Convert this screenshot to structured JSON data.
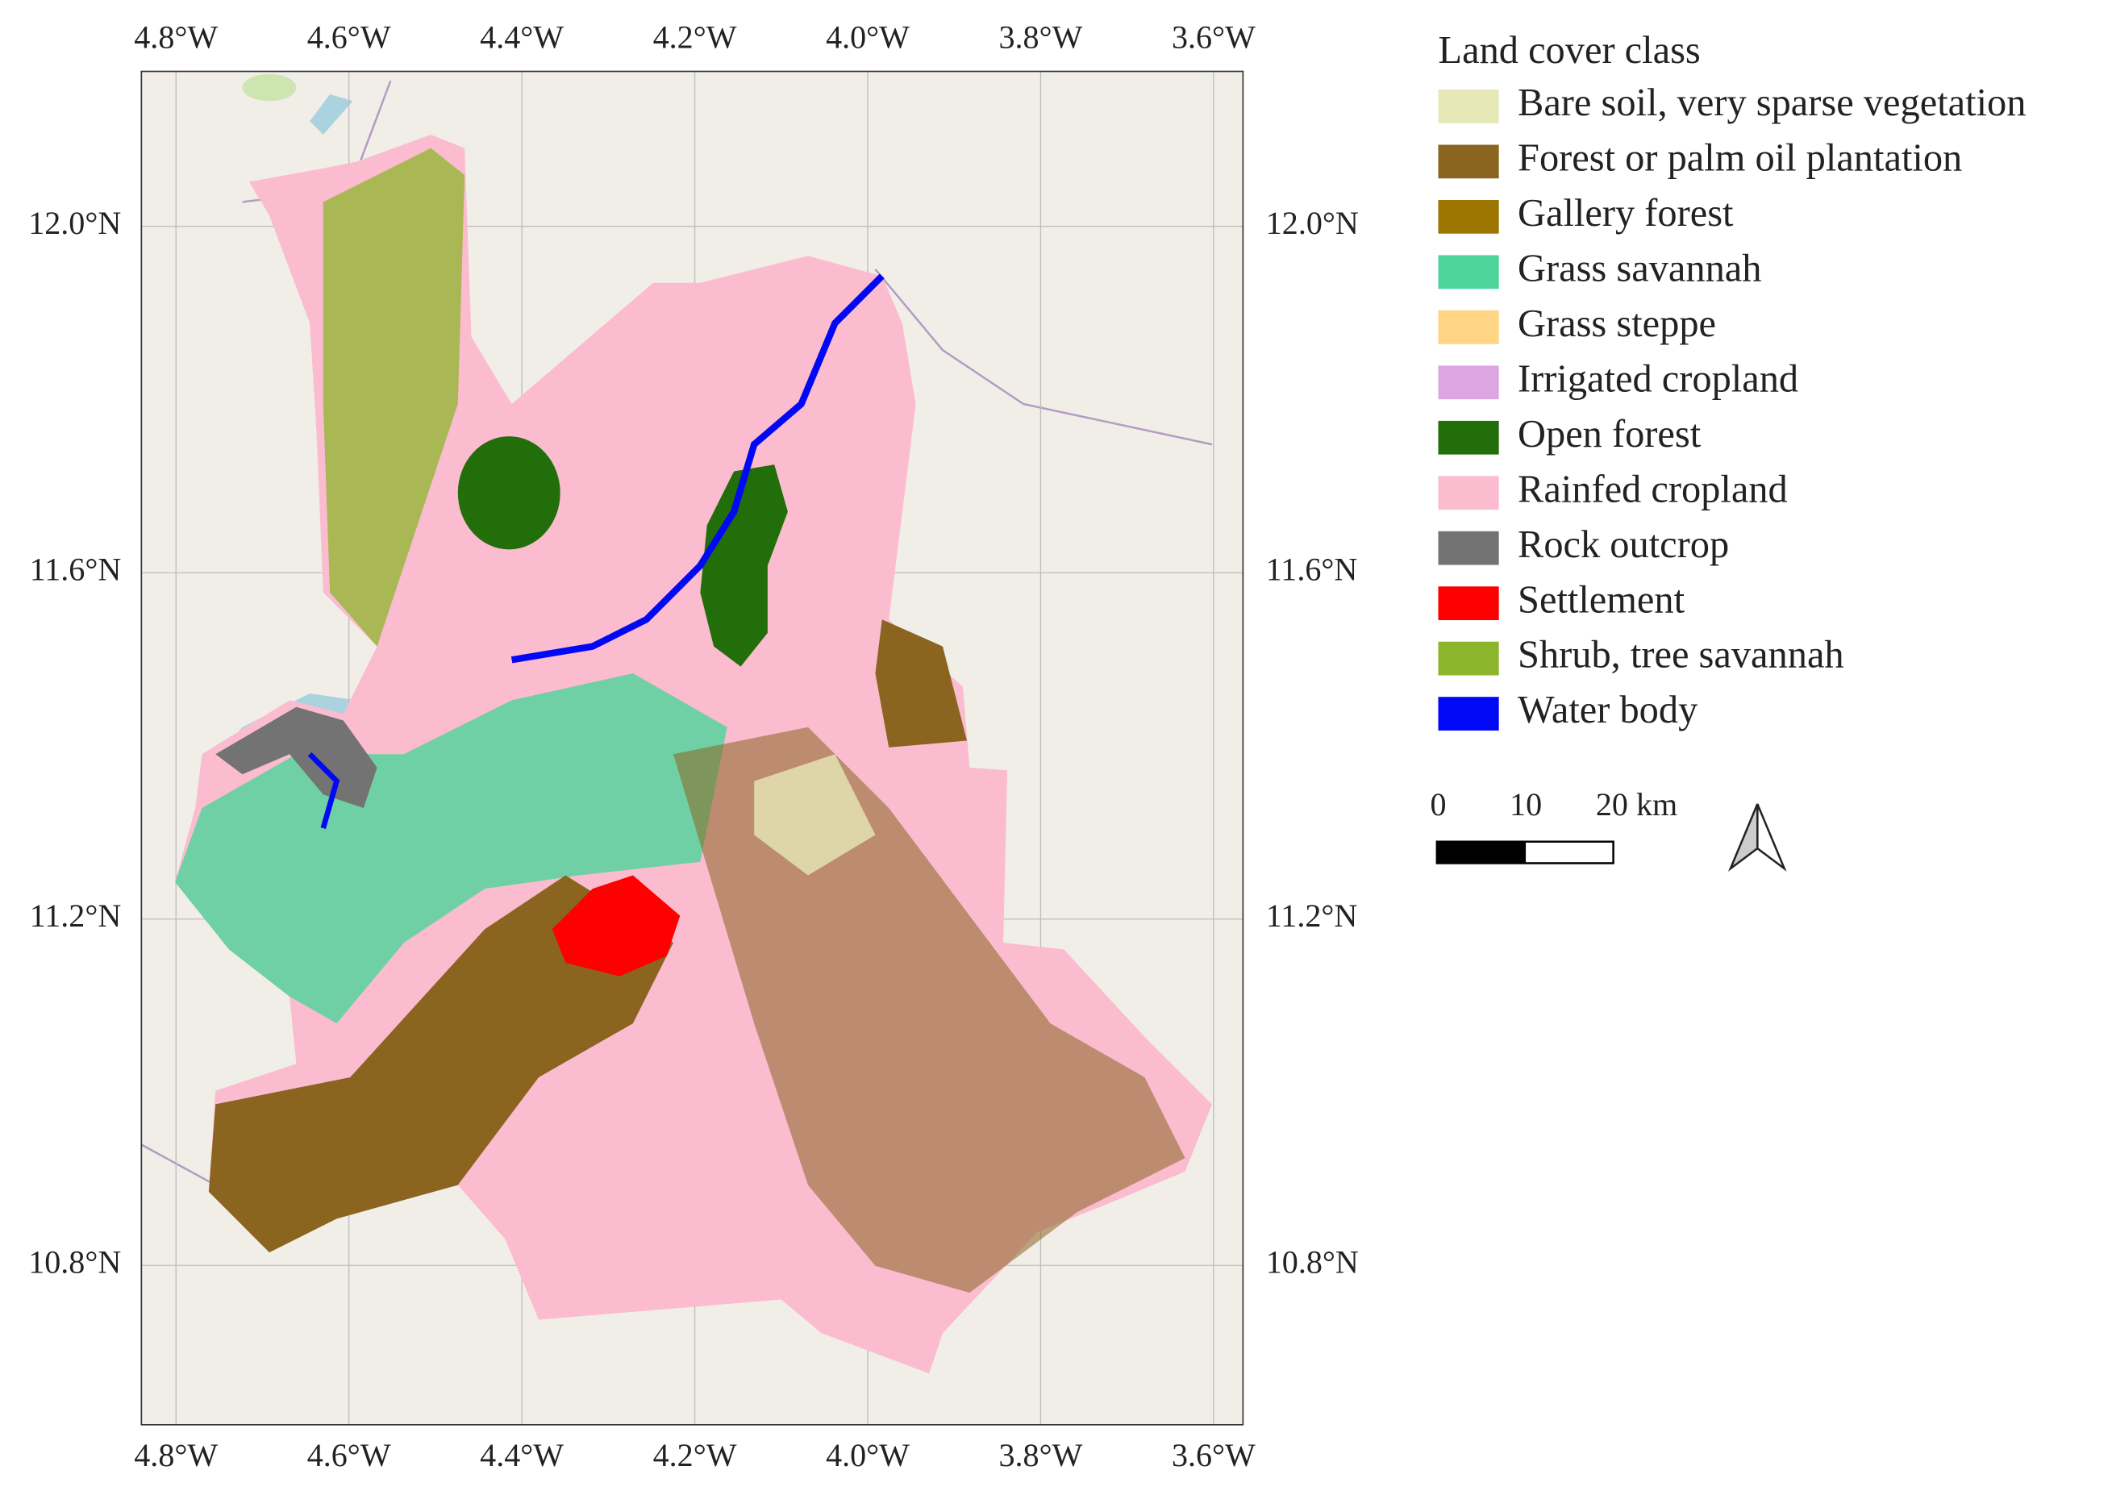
{
  "map": {
    "xlim": [
      -4.84,
      -3.566
    ],
    "ylim": [
      10.616,
      12.179
    ],
    "xticks": [
      {
        "value": -4.8,
        "label": "4.8°W"
      },
      {
        "value": -4.6,
        "label": "4.6°W"
      },
      {
        "value": -4.4,
        "label": "4.4°W"
      },
      {
        "value": -4.2,
        "label": "4.2°W"
      },
      {
        "value": -4.0,
        "label": "4.0°W"
      },
      {
        "value": -3.8,
        "label": "3.8°W"
      },
      {
        "value": -3.6,
        "label": "3.6°W"
      }
    ],
    "yticks": [
      {
        "value": 10.8,
        "label": "10.8°N"
      },
      {
        "value": 11.2,
        "label": "11.2°N"
      },
      {
        "value": 11.6,
        "label": "11.6°N"
      },
      {
        "value": 12.0,
        "label": "12.0°N"
      }
    ]
  },
  "legend": {
    "title": "Land cover class",
    "items": [
      {
        "label": "Bare soil, very sparse vegetation",
        "color": "#e6e8b8"
      },
      {
        "label": "Forest or palm oil plantation",
        "color": "#8b6420"
      },
      {
        "label": "Gallery forest",
        "color": "#9c7600"
      },
      {
        "label": "Grass savannah",
        "color": "#4dd49a"
      },
      {
        "label": "Grass steppe",
        "color": "#fed584"
      },
      {
        "label": "Irrigated cropland",
        "color": "#dca6e2"
      },
      {
        "label": "Open forest",
        "color": "#226e0a"
      },
      {
        "label": "Rainfed cropland",
        "color": "#fbbcd0"
      },
      {
        "label": "Rock outcrop",
        "color": "#737373"
      },
      {
        "label": "Settlement",
        "color": "#fe0000"
      },
      {
        "label": "Shrub, tree savannah",
        "color": "#8db52c"
      },
      {
        "label": "Water body",
        "color": "#0008f5"
      }
    ]
  },
  "scale_bar": {
    "labels": [
      "0",
      "10",
      "20 km"
    ]
  }
}
